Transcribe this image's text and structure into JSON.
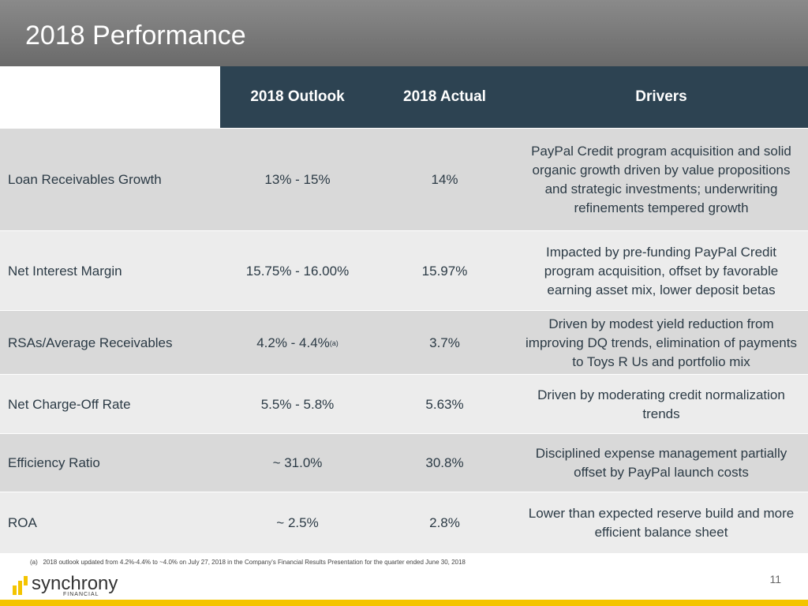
{
  "header": {
    "title": "2018 Performance"
  },
  "table": {
    "columns": [
      "2018 Outlook",
      "2018 Actual",
      "Drivers"
    ],
    "rows": [
      {
        "label": "Loan Receivables Growth",
        "outlook": "13% - 15%",
        "actual": "14%",
        "drivers": "PayPal Credit program acquisition and solid organic growth driven by value propositions and strategic investments; underwriting refinements tempered growth"
      },
      {
        "label": "Net Interest Margin",
        "outlook": "15.75% - 16.00%",
        "actual": "15.97%",
        "drivers": "Impacted by pre-funding PayPal Credit program acquisition, offset by favorable earning asset mix, lower deposit betas"
      },
      {
        "label": "RSAs/Average Receivables",
        "outlook": "4.2% - 4.4%",
        "note": "(a)",
        "actual": "3.7%",
        "drivers": "Driven by modest yield reduction from improving DQ trends, elimination of payments to Toys R Us and portfolio mix"
      },
      {
        "label": "Net Charge-Off Rate",
        "outlook": "5.5% - 5.8%",
        "actual": "5.63%",
        "drivers": "Driven by moderating credit normalization trends"
      },
      {
        "label": "Efficiency Ratio",
        "outlook": "~ 31.0%",
        "actual": "30.8%",
        "drivers": "Disciplined expense management partially offset by PayPal launch costs"
      },
      {
        "label": "ROA",
        "outlook": "~ 2.5%",
        "actual": "2.8%",
        "drivers": "Lower than expected reserve build and more efficient balance sheet"
      }
    ]
  },
  "footnote": {
    "marker": "(a)",
    "text": "2018 outlook updated from 4.2%-4.4% to ~4.0% on July 27, 2018 in the Company's Financial Results Presentation for the quarter ended June 30, 2018"
  },
  "footer": {
    "logo": "synchrony",
    "logo_sub": "FINANCIAL",
    "page": "11"
  }
}
